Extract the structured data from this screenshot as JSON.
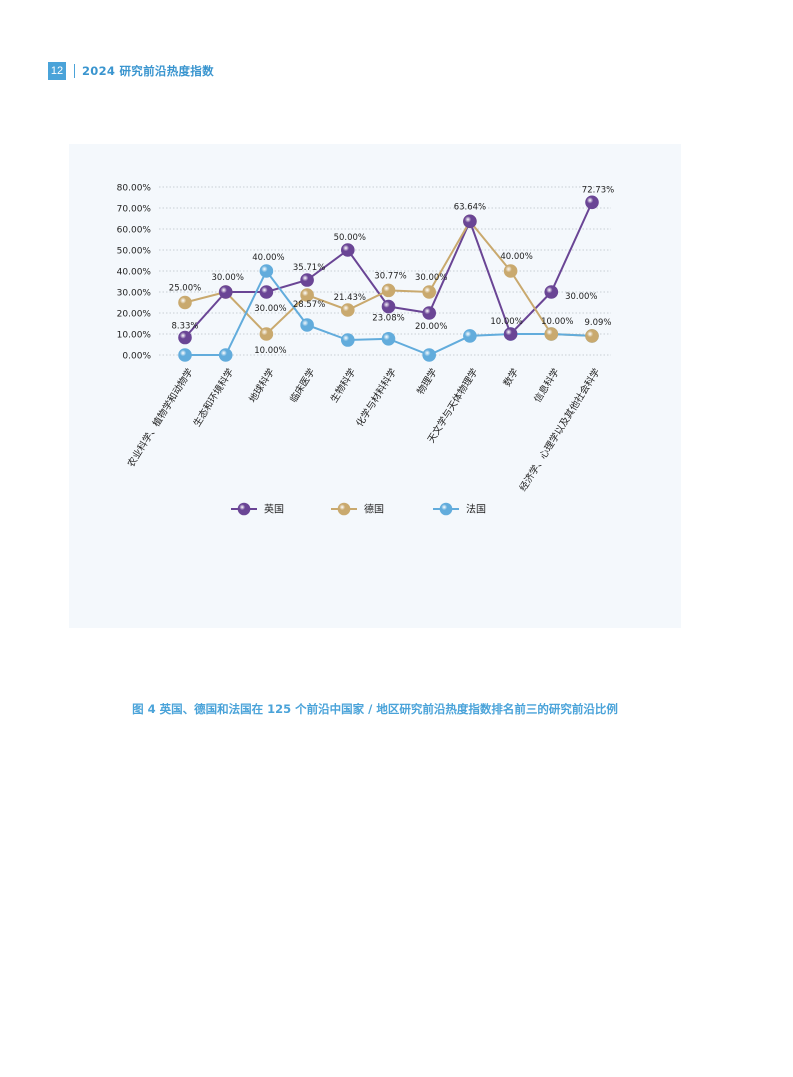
{
  "header": {
    "page_number": "12",
    "title": "2024 研究前沿热度指数"
  },
  "caption": "图 4  英国、德国和法国在 125 个前沿中国家 / 地区研究前沿热度指数排名前三的研究前沿比例",
  "chart_data": {
    "type": "line",
    "title": "",
    "xlabel": "",
    "ylabel": "",
    "ylim": [
      0,
      80
    ],
    "yticks": [
      "0.00%",
      "10.00%",
      "20.00%",
      "30.00%",
      "40.00%",
      "50.00%",
      "60.00%",
      "70.00%",
      "80.00%"
    ],
    "grid": true,
    "legend_position": "bottom",
    "categories": [
      "农业科学、植物学和动物学",
      "生态和环境科学",
      "地球科学",
      "临床医学",
      "生物科学",
      "化学与材料科学",
      "物理学",
      "天文学与天体物理学",
      "数学",
      "信息科学",
      "经济学、心理学以及其他社会科学"
    ],
    "series": [
      {
        "name": "英国",
        "color": "#6a4595",
        "values": [
          8.33,
          30.0,
          30.0,
          35.71,
          50.0,
          23.08,
          20.0,
          63.64,
          10.0,
          30.0,
          72.73
        ],
        "labels": [
          "8.33%",
          "",
          "30.00%",
          "35.71%",
          "50.00%",
          "23.08%",
          "20.00%",
          "",
          "10.00%",
          "30.00%",
          "72.73%"
        ]
      },
      {
        "name": "德国",
        "color": "#c9a96e",
        "values": [
          25.0,
          30.0,
          10.0,
          28.57,
          21.43,
          30.77,
          30.0,
          63.64,
          40.0,
          10.0,
          9.09
        ],
        "labels": [
          "25.00%",
          "30.00%",
          "10.00%",
          "28.57%",
          "21.43%",
          "30.77%",
          "30.00%",
          "63.64%",
          "40.00%",
          "10.00%",
          "9.09%"
        ]
      },
      {
        "name": "法国",
        "color": "#62acdc",
        "values": [
          0.0,
          0.0,
          40.0,
          14.29,
          7.14,
          7.69,
          0.0,
          9.09,
          10.0,
          10.0,
          9.09
        ],
        "labels": [
          "",
          "",
          "40.00%",
          "",
          "",
          "",
          "",
          "",
          "",
          "",
          ""
        ]
      }
    ]
  }
}
